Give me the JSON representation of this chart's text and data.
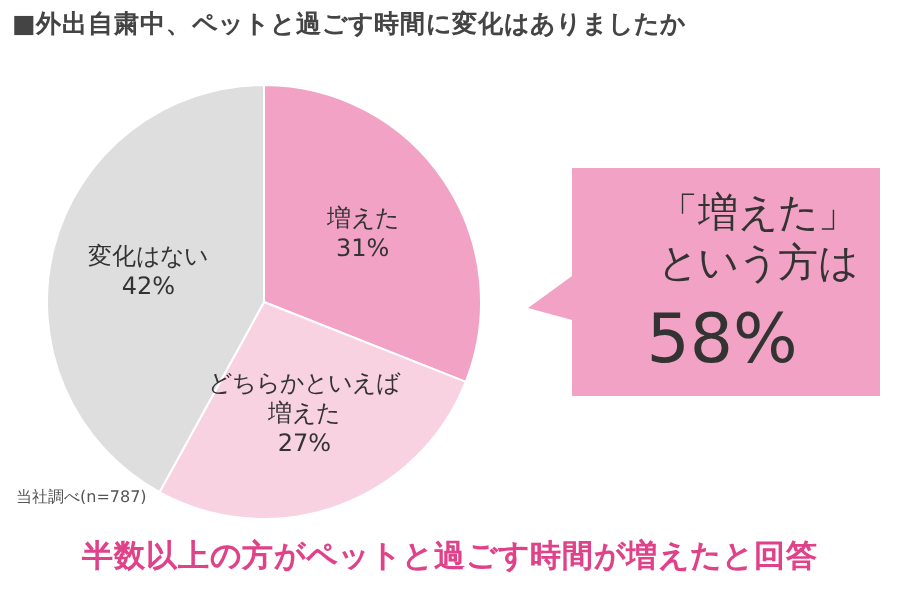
{
  "chart_data": {
    "type": "pie",
    "title": "■外出自粛中、ペットと過ごす時間に変化はありましたか",
    "categories": [
      "増えた",
      "どちらかといえば増えた",
      "変化はない"
    ],
    "values": [
      31,
      27,
      42
    ],
    "value_labels": [
      "31%",
      "27%",
      "42%"
    ],
    "colors": [
      "#f2a3c5",
      "#f9d2e2",
      "#dedede"
    ],
    "legend": false,
    "annotations": [
      "「増えた」という方は",
      "58%",
      "当社調べ(n=787)",
      "半数以上の方がペットと過ごす時間が増えたと回答"
    ]
  }
}
